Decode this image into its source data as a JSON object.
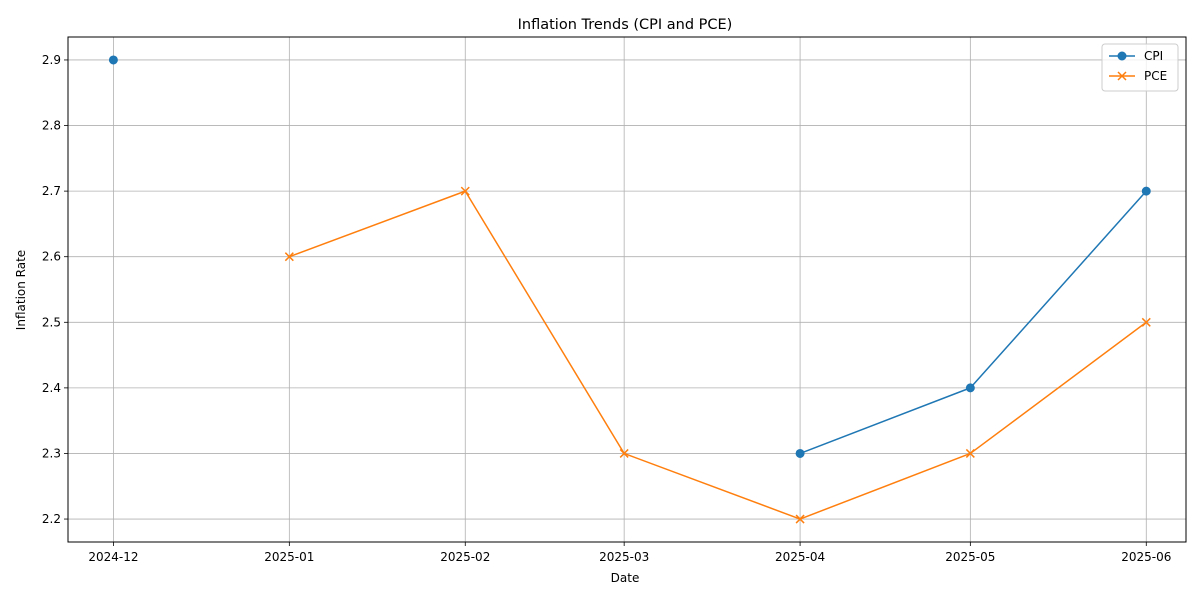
{
  "chart_data": {
    "type": "line",
    "title": "Inflation Trends (CPI and PCE)",
    "xlabel": "Date",
    "ylabel": "Inflation Rate",
    "x_ticks": [
      "2024-12",
      "2025-01",
      "2025-02",
      "2025-03",
      "2025-04",
      "2025-05",
      "2025-06"
    ],
    "y_ticks": [
      "2.2",
      "2.3",
      "2.4",
      "2.5",
      "2.6",
      "2.7",
      "2.8",
      "2.9"
    ],
    "ylim": [
      2.165,
      2.935
    ],
    "xlim": [
      "2024-11-23",
      "2025-06-08"
    ],
    "grid": true,
    "legend_position": "top-right",
    "series": [
      {
        "name": "CPI",
        "color": "#1f77b4",
        "marker": "circle",
        "points": [
          {
            "x": "2024-12-01",
            "y": 2.9
          },
          {
            "x": "2025-01-01",
            "y": null
          },
          {
            "x": "2025-02-01",
            "y": null
          },
          {
            "x": "2025-03-01",
            "y": null
          },
          {
            "x": "2025-04-01",
            "y": 2.3
          },
          {
            "x": "2025-05-01",
            "y": 2.4
          },
          {
            "x": "2025-06-01",
            "y": 2.7
          }
        ]
      },
      {
        "name": "PCE",
        "color": "#ff7f0e",
        "marker": "x",
        "points": [
          {
            "x": "2024-12-01",
            "y": null
          },
          {
            "x": "2025-01-01",
            "y": 2.6
          },
          {
            "x": "2025-02-01",
            "y": 2.7
          },
          {
            "x": "2025-03-01",
            "y": 2.3
          },
          {
            "x": "2025-04-01",
            "y": 2.2
          },
          {
            "x": "2025-05-01",
            "y": 2.3
          },
          {
            "x": "2025-06-01",
            "y": 2.5
          }
        ]
      }
    ]
  }
}
